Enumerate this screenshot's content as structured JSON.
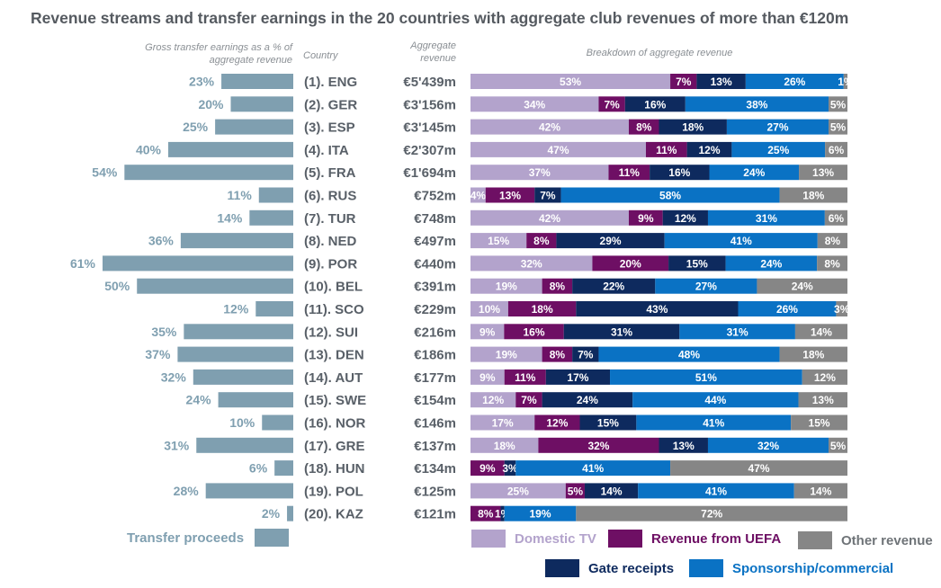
{
  "chart_data": {
    "type": "bar",
    "title": "Revenue streams and transfer earnings in the 20 countries with aggregate club revenues of more than €120m",
    "headers": {
      "transfer": "Gross transfer earnings as a % of aggregate revenue",
      "country": "Country",
      "aggregate": "Aggregate revenue",
      "breakdown": "Breakdown of aggregate revenue"
    },
    "categories": [
      "(1). ENG",
      "(2). GER",
      "(3). ESP",
      "(4). ITA",
      "(5). FRA",
      "(6). RUS",
      "(7). TUR",
      "(8). NED",
      "(9). POR",
      "(10). BEL",
      "(11). SCO",
      "(12). SUI",
      "(13). DEN",
      "(14). AUT",
      "(15). SWE",
      "(16). NOR",
      "(17). GRE",
      "(18). HUN",
      "(19). POL",
      "(20). KAZ"
    ],
    "aggregate_revenue": [
      "€5'439m",
      "€3'156m",
      "€3'145m",
      "€2'307m",
      "€1'694m",
      "€752m",
      "€748m",
      "€497m",
      "€440m",
      "€391m",
      "€229m",
      "€216m",
      "€186m",
      "€177m",
      "€154m",
      "€146m",
      "€137m",
      "€134m",
      "€125m",
      "€121m"
    ],
    "transfer_series": {
      "name": "Transfer proceeds",
      "color": "#7f9fb0",
      "values": [
        23,
        20,
        25,
        40,
        54,
        11,
        14,
        36,
        61,
        50,
        12,
        35,
        37,
        32,
        24,
        10,
        31,
        6,
        28,
        2
      ],
      "xlim": [
        0,
        61
      ]
    },
    "breakdown_series": [
      {
        "name": "Domestic TV",
        "color": "#b3a3cc",
        "values": [
          53,
          34,
          42,
          47,
          37,
          4,
          42,
          15,
          32,
          19,
          10,
          9,
          19,
          9,
          12,
          17,
          18,
          0,
          25,
          0
        ]
      },
      {
        "name": "Revenue from UEFA",
        "color": "#6e0f64",
        "values": [
          7,
          7,
          8,
          11,
          11,
          13,
          9,
          8,
          20,
          8,
          18,
          16,
          8,
          11,
          7,
          12,
          32,
          9,
          5,
          8
        ]
      },
      {
        "name": "Gate receipts",
        "color": "#0e2a5e",
        "values": [
          13,
          16,
          18,
          12,
          16,
          7,
          12,
          29,
          15,
          22,
          43,
          31,
          7,
          17,
          24,
          15,
          13,
          3,
          14,
          1
        ]
      },
      {
        "name": "Sponsorship/commercial",
        "color": "#0a72c4",
        "values": [
          26,
          38,
          27,
          25,
          24,
          58,
          31,
          41,
          24,
          27,
          26,
          31,
          48,
          51,
          44,
          41,
          32,
          41,
          41,
          19
        ]
      },
      {
        "name": "Other revenue",
        "color": "#868686",
        "values": [
          1,
          5,
          5,
          6,
          13,
          18,
          6,
          8,
          8,
          24,
          3,
          14,
          18,
          12,
          13,
          15,
          5,
          47,
          14,
          72
        ]
      }
    ],
    "legend_order": [
      0,
      1,
      4,
      2,
      3
    ],
    "legend": {
      "transfer_label": "Transfer proceeds"
    }
  }
}
